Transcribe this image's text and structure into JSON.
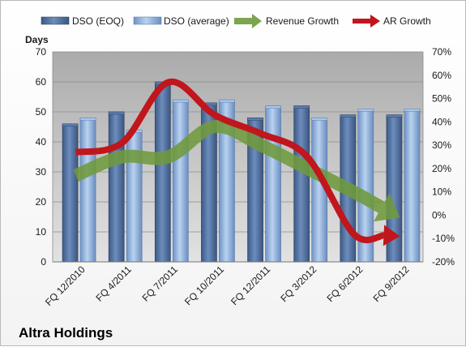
{
  "company": "Altra Holdings",
  "chart_data": {
    "type": "bar",
    "categories": [
      "FQ 12/2010",
      "FQ 4/2011",
      "FQ 7/2011",
      "FQ 10/2011",
      "FQ 12/2011",
      "FQ 3/2012",
      "FQ 6/2012",
      "FQ 9/2012"
    ],
    "ylabel": "Days",
    "ylim": [
      0,
      70
    ],
    "yticks": [
      0,
      10,
      20,
      30,
      40,
      50,
      60,
      70
    ],
    "y2lim": [
      -0.2,
      0.7
    ],
    "y2ticks": [
      "-20%",
      "-10%",
      "0%",
      "10%",
      "20%",
      "30%",
      "40%",
      "50%",
      "60%",
      "70%"
    ],
    "grid": true,
    "legend_position": "top",
    "series": [
      {
        "name": "DSO (EOQ)",
        "kind": "bar",
        "color": "#4a6a9a",
        "values": [
          46,
          50,
          60,
          53,
          48,
          52,
          49,
          49
        ]
      },
      {
        "name": "DSO (average)",
        "kind": "bar",
        "color": "#8fb2de",
        "values": [
          48,
          44,
          54,
          54,
          52,
          48,
          51,
          51
        ]
      },
      {
        "name": "Revenue Growth",
        "kind": "line",
        "axis": "right",
        "color": "#6f9a3c",
        "values": [
          0.17,
          0.25,
          0.25,
          0.38,
          0.3,
          0.2,
          0.1,
          -0.01
        ]
      },
      {
        "name": "AR Growth",
        "kind": "line",
        "axis": "right",
        "color": "#c0161c",
        "values": [
          0.27,
          0.31,
          0.57,
          0.43,
          0.35,
          0.25,
          -0.08,
          -0.09
        ]
      }
    ]
  }
}
